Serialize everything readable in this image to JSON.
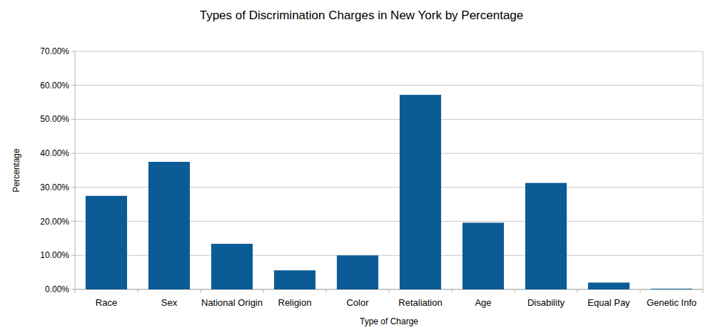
{
  "chart_data": {
    "type": "bar",
    "title": "Types of Discrimination Charges in New York by Percentage",
    "x_label": "Type of Charge",
    "y_label": "Percentage",
    "categories": [
      "Race",
      "Sex",
      "National Origin",
      "Religion",
      "Color",
      "Retaliation",
      "Age",
      "Disability",
      "Equal Pay",
      "Genetic Info"
    ],
    "values": [
      27.5,
      37.5,
      13.4,
      5.6,
      10.0,
      57.2,
      19.6,
      31.3,
      2.0,
      0.2
    ],
    "color": "#0b5b96",
    "ylim": [
      0,
      70
    ],
    "yticks": [
      {
        "value": 0,
        "label": "0.00%"
      },
      {
        "value": 10,
        "label": "10.00%"
      },
      {
        "value": 20,
        "label": "20.00%"
      },
      {
        "value": 30,
        "label": "30.00%"
      },
      {
        "value": 40,
        "label": "40.00%"
      },
      {
        "value": 50,
        "label": "50.00%"
      },
      {
        "value": 60,
        "label": "60.00%"
      },
      {
        "value": 70,
        "label": "70.00%"
      }
    ],
    "grid": true
  }
}
